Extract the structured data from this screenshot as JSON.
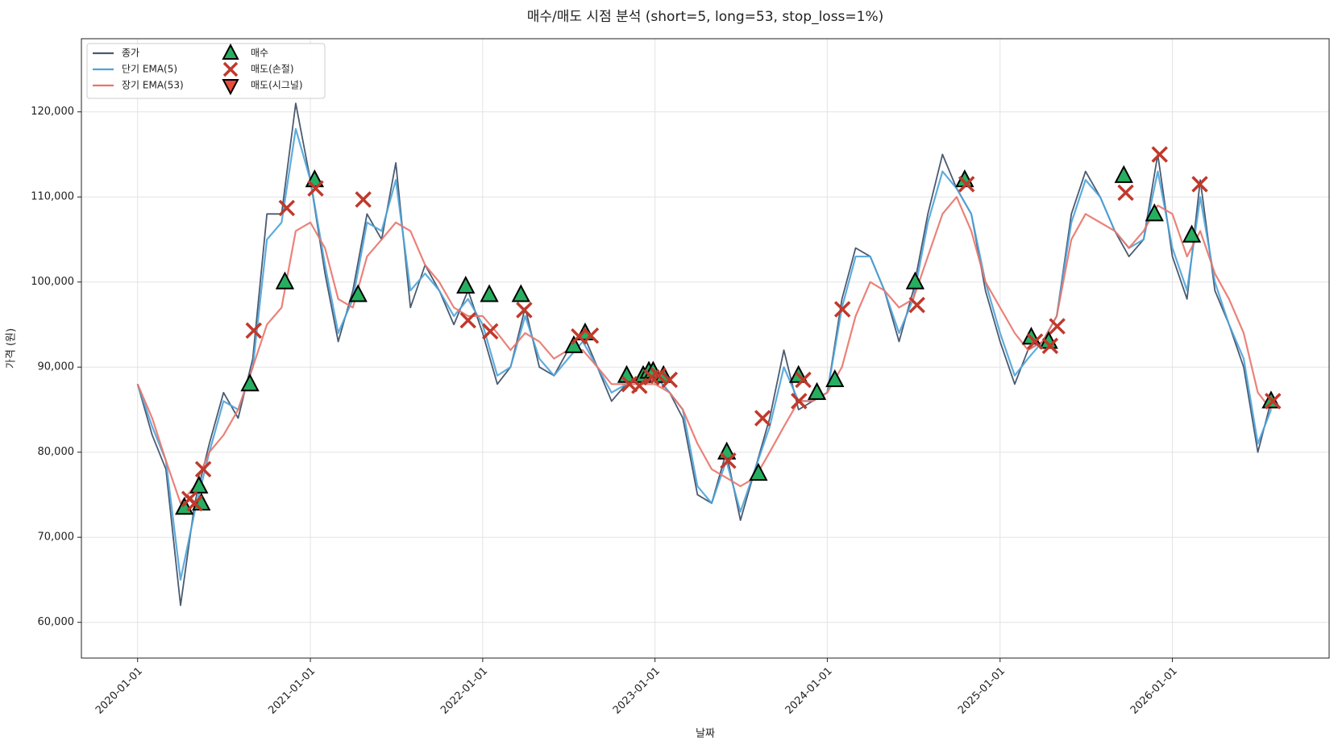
{
  "chart_data": {
    "type": "line",
    "title": "매수/매도 시점 분석 (short=5, long=53, stop_loss=1%)",
    "x_label": "날짜",
    "y_label": "가격 (원)",
    "xlim": [
      "2019-09-04",
      "2026-11-29"
    ],
    "xticks": [
      "2020-01-01",
      "2021-01-01",
      "2022-01-01",
      "2023-01-01",
      "2024-01-01",
      "2025-01-01",
      "2026-01-01"
    ],
    "ylim": [
      55800,
      128600
    ],
    "yticks": [
      {
        "value": 60000,
        "label": "60,000"
      },
      {
        "value": 70000,
        "label": "70,000"
      },
      {
        "value": 80000,
        "label": "80,000"
      },
      {
        "value": 90000,
        "label": "90,000"
      },
      {
        "value": 100000,
        "label": "100,000"
      },
      {
        "value": 110000,
        "label": "110,000"
      },
      {
        "value": 120000,
        "label": "120,000"
      }
    ],
    "grid": true,
    "legend": "upper left",
    "x": [
      "2020-01-01",
      "2020-02-01",
      "2020-03-01",
      "2020-04-01",
      "2020-05-01",
      "2020-06-01",
      "2020-07-01",
      "2020-08-01",
      "2020-09-01",
      "2020-10-01",
      "2020-11-01",
      "2020-12-01",
      "2021-01-01",
      "2021-02-01",
      "2021-03-01",
      "2021-04-01",
      "2021-05-01",
      "2021-06-01",
      "2021-07-01",
      "2021-08-01",
      "2021-09-01",
      "2021-10-01",
      "2021-11-01",
      "2021-12-01",
      "2022-01-01",
      "2022-02-01",
      "2022-03-01",
      "2022-04-01",
      "2022-05-01",
      "2022-06-01",
      "2022-07-01",
      "2022-08-01",
      "2022-09-01",
      "2022-10-01",
      "2022-11-01",
      "2022-12-01",
      "2023-01-01",
      "2023-02-01",
      "2023-03-01",
      "2023-04-01",
      "2023-05-01",
      "2023-06-01",
      "2023-07-01",
      "2023-08-01",
      "2023-09-01",
      "2023-10-01",
      "2023-11-01",
      "2023-12-01",
      "2024-01-01",
      "2024-02-01",
      "2024-03-01",
      "2024-04-01",
      "2024-05-01",
      "2024-06-01",
      "2024-07-01",
      "2024-08-01",
      "2024-09-01",
      "2024-10-01",
      "2024-11-01",
      "2024-12-01",
      "2025-01-01",
      "2025-02-01",
      "2025-03-01",
      "2025-04-01",
      "2025-05-01",
      "2025-06-01",
      "2025-07-01",
      "2025-08-01",
      "2025-09-01",
      "2025-10-01",
      "2025-11-01",
      "2025-12-01",
      "2026-01-01",
      "2026-02-01",
      "2026-03-01",
      "2026-04-01",
      "2026-05-01",
      "2026-06-01",
      "2026-07-01",
      "2026-07-29"
    ],
    "series": [
      {
        "name": "종가",
        "color": "#4a5a70",
        "values": [
          88000,
          82000,
          78000,
          62000,
          74000,
          81000,
          87000,
          84000,
          91000,
          108000,
          108000,
          121000,
          112000,
          101000,
          93000,
          99000,
          108000,
          105000,
          114000,
          97000,
          102000,
          99000,
          95000,
          99000,
          94000,
          88000,
          90000,
          97000,
          90000,
          89000,
          92000,
          94000,
          90000,
          86000,
          88000,
          89000,
          89000,
          87000,
          84000,
          75000,
          74000,
          80000,
          72000,
          78000,
          84000,
          92000,
          85000,
          86000,
          87000,
          98000,
          104000,
          103000,
          99000,
          93000,
          99000,
          108000,
          115000,
          111000,
          108000,
          99000,
          93000,
          88000,
          92000,
          93000,
          96000,
          108000,
          113000,
          110000,
          106000,
          103000,
          105000,
          115000,
          103000,
          98000,
          112000,
          99000,
          95000,
          90000,
          80000,
          86000
        ]
      },
      {
        "name": "단기 EMA(5)",
        "color": "#4ea3d9",
        "values": [
          88000,
          83000,
          79000,
          65000,
          73000,
          80000,
          86000,
          85000,
          90000,
          105000,
          107000,
          118000,
          112000,
          102000,
          94000,
          98000,
          107000,
          106000,
          112000,
          99000,
          101000,
          99000,
          96000,
          98000,
          95000,
          89000,
          90000,
          96000,
          91000,
          89000,
          91000,
          93000,
          90000,
          87000,
          88000,
          89000,
          89000,
          87000,
          85000,
          76000,
          74000,
          79000,
          73000,
          78000,
          83000,
          90000,
          86000,
          86000,
          87000,
          97000,
          103000,
          103000,
          99000,
          94000,
          98000,
          107000,
          113000,
          111000,
          108000,
          100000,
          94000,
          89000,
          91000,
          93000,
          96000,
          107000,
          112000,
          110000,
          106000,
          104000,
          105000,
          113000,
          104000,
          99000,
          110000,
          100000,
          95000,
          91000,
          81000,
          85000
        ]
      },
      {
        "name": "장기 EMA(53)",
        "color": "#e8746a",
        "values": [
          88000,
          84000,
          79000,
          74000,
          76000,
          80000,
          82000,
          85000,
          90000,
          95000,
          97000,
          106000,
          107000,
          104000,
          98000,
          97000,
          103000,
          105000,
          107000,
          106000,
          102000,
          100000,
          97000,
          96000,
          96000,
          94000,
          92000,
          94000,
          93000,
          91000,
          92000,
          92000,
          90000,
          88000,
          88000,
          88000,
          88000,
          87000,
          85000,
          81000,
          78000,
          77000,
          76000,
          77000,
          80000,
          83000,
          86000,
          86000,
          87000,
          90000,
          96000,
          100000,
          99000,
          97000,
          98000,
          103000,
          108000,
          110000,
          106000,
          100000,
          97000,
          94000,
          92000,
          93000,
          96000,
          105000,
          108000,
          107000,
          106000,
          104000,
          106000,
          109000,
          108000,
          103000,
          106000,
          101000,
          98000,
          94000,
          87000,
          85000
        ]
      },
      {
        "name": "매수",
        "color": "#27ae60",
        "marker": "^",
        "x": [
          "2020-04-09",
          "2020-05-10",
          "2020-05-15",
          "2020-08-26",
          "2020-11-08",
          "2021-01-10",
          "2021-04-12",
          "2021-11-26",
          "2022-01-15",
          "2022-03-23",
          "2022-07-13",
          "2022-08-06",
          "2022-11-02",
          "2022-12-07",
          "2022-12-19",
          "2022-12-28",
          "2023-01-19",
          "2023-06-02",
          "2023-08-08",
          "2023-11-01",
          "2023-12-10",
          "2024-01-17",
          "2024-07-05",
          "2024-10-18",
          "2025-03-08",
          "2025-04-14",
          "2025-09-20",
          "2025-11-24",
          "2026-02-11",
          "2026-07-29"
        ],
        "values": [
          73500,
          76000,
          74000,
          88000,
          100000,
          112000,
          98500,
          99500,
          98500,
          98500,
          92500,
          94000,
          89000,
          89000,
          89500,
          89500,
          89000,
          80000,
          77500,
          89000,
          87000,
          88500,
          100000,
          112000,
          93500,
          93000,
          112500,
          108000,
          105500,
          86000
        ]
      },
      {
        "name": "매도(손절)",
        "color": "#c0392b",
        "marker": "x",
        "x": [
          "2020-04-20",
          "2020-05-01",
          "2020-05-19",
          "2020-09-03",
          "2020-11-12",
          "2021-01-12",
          "2021-04-23",
          "2021-12-01",
          "2022-01-17",
          "2022-03-30",
          "2022-07-24",
          "2022-08-18",
          "2022-11-08",
          "2022-11-29",
          "2022-12-25",
          "2023-01-08",
          "2023-02-01",
          "2023-06-05",
          "2023-08-17",
          "2023-11-02",
          "2023-11-11",
          "2024-02-02",
          "2024-07-09",
          "2024-10-22",
          "2025-03-16",
          "2025-04-17",
          "2025-05-02",
          "2025-09-24",
          "2025-12-05",
          "2026-02-28",
          "2026-08-02"
        ],
        "values": [
          74500,
          74000,
          78000,
          94300,
          108700,
          111000,
          109700,
          95500,
          94200,
          96700,
          93600,
          93700,
          88000,
          87800,
          88800,
          89000,
          88500,
          79000,
          84000,
          86000,
          88500,
          96800,
          97300,
          111500,
          93000,
          92500,
          94800,
          110500,
          115000,
          111500,
          86000
        ]
      },
      {
        "name": "매도(시그널)",
        "color": "#e74c3c",
        "marker": "v",
        "x": [],
        "values": []
      }
    ]
  }
}
